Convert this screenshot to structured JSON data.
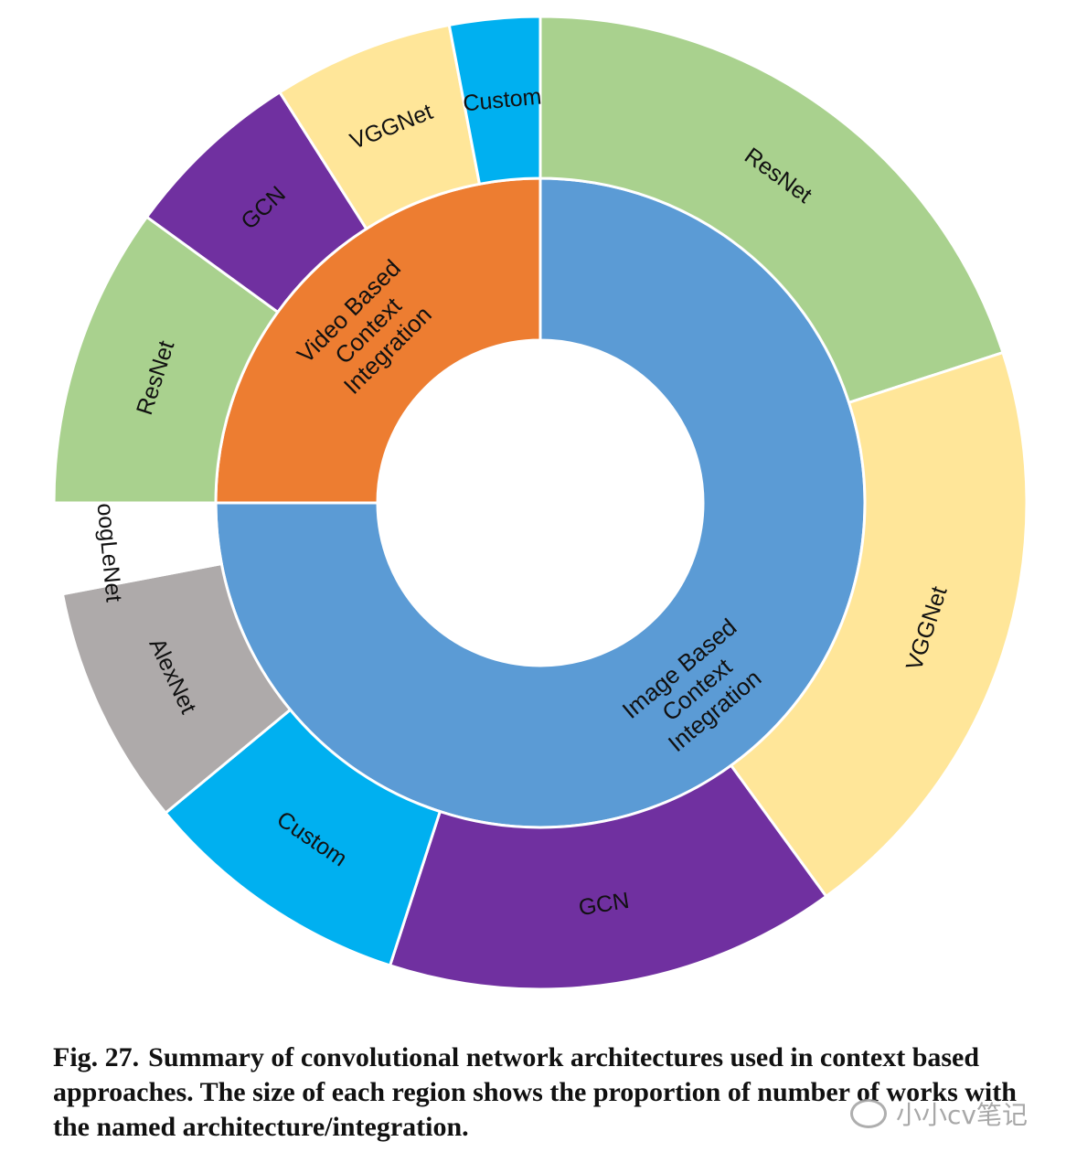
{
  "chart_data": {
    "type": "sunburst",
    "inner": [
      {
        "label": "Image Based Context Integration",
        "value": 75,
        "color": "#5b9bd5"
      },
      {
        "label": "Video Based Context Integration",
        "value": 25,
        "color": "#ed7d31"
      }
    ],
    "outer": [
      {
        "label": "ResNet",
        "value": 20,
        "color": "#a9d18e",
        "parent": "Image Based Context Integration"
      },
      {
        "label": "VGGNet",
        "value": 20,
        "color": "#ffe699",
        "parent": "Image Based Context Integration"
      },
      {
        "label": "GCN",
        "value": 15,
        "color": "#7030a0",
        "parent": "Image Based Context Integration"
      },
      {
        "label": "Custom",
        "value": 9,
        "color": "#00b0f0",
        "parent": "Image Based Context Integration"
      },
      {
        "label": "AlexNet",
        "value": 8,
        "color": "#aeaaaa",
        "parent": "Image Based Context Integration"
      },
      {
        "label": "GoogLeNet",
        "value": 3,
        "color": "#ffffff",
        "parent": "Image Based Context Integration"
      },
      {
        "label": "ResNet",
        "value": 10,
        "color": "#a9d18e",
        "parent": "Video Based Context Integration"
      },
      {
        "label": "GCN",
        "value": 6,
        "color": "#7030a0",
        "parent": "Video Based Context Integration"
      },
      {
        "label": "VGGNet",
        "value": 6,
        "color": "#ffe699",
        "parent": "Video Based Context Integration"
      },
      {
        "label": "Custom",
        "value": 3,
        "color": "#00b0f0",
        "parent": "Video Based Context Integration"
      }
    ]
  },
  "caption": {
    "figure_number": "Fig. 27.",
    "text": "Summary of convolutional network architectures used in context based approaches. The size of each region shows the proportion of number of works with the named architecture/integration."
  },
  "watermark": {
    "text": "小小cv笔记"
  }
}
